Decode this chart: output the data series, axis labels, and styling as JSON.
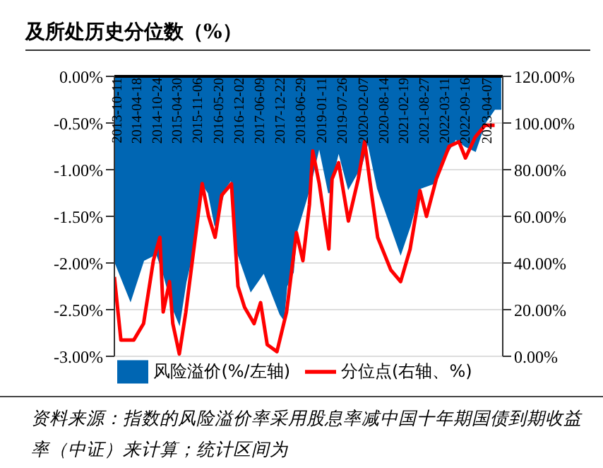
{
  "chart_data": {
    "type": "area",
    "title": "及所处历史分位数（%）",
    "annotations": [
      "资料来源：指数的风险溢价率采用股息率减中国十年期国债到期收益率（中证）来计算；统计区间为"
    ],
    "xlim": [
      "2013-10-01",
      "2023-09-15"
    ],
    "xticks": [
      "2013-10-11",
      "2014-04-18",
      "2014-10-24",
      "2015-04-30",
      "2015-11-06",
      "2016-05-20",
      "2016-12-02",
      "2017-06-09",
      "2017-12-22",
      "2018-06-29",
      "2019-01-11",
      "2019-07-26",
      "2020-02-07",
      "2020-08-14",
      "2021-02-19",
      "2021-08-27",
      "2022-03-11",
      "2022-09-16",
      "2023-04-07"
    ],
    "ylim": [
      -3,
      0
    ],
    "yticks": [
      {
        "value": 0,
        "label": "0.00%"
      },
      {
        "value": -0.5,
        "label": "-0.50%"
      },
      {
        "value": -1,
        "label": "-1.00%"
      },
      {
        "value": -1.5,
        "label": "-1.50%"
      },
      {
        "value": -2,
        "label": "-2.00%"
      },
      {
        "value": -2.5,
        "label": "-2.50%"
      },
      {
        "value": -3,
        "label": "-3.00%"
      }
    ],
    "y2lim": [
      0,
      120
    ],
    "y2ticks": [
      {
        "value": 0,
        "label": "0.00%"
      },
      {
        "value": 20,
        "label": "20.00%"
      },
      {
        "value": 40,
        "label": "40.00%"
      },
      {
        "value": 60,
        "label": "60.00%"
      },
      {
        "value": 80,
        "label": "80.00%"
      },
      {
        "value": 100,
        "label": "100.00%"
      },
      {
        "value": 120,
        "label": "120.00%"
      }
    ],
    "grid": "y",
    "legend": "bottom",
    "series": [
      {
        "name": "风险溢价(%/左轴)",
        "color": "#0066b3",
        "x": [
          "2013-10",
          "2014-03",
          "2014-07",
          "2014-11",
          "2015-01",
          "2015-04",
          "2015-06",
          "2015-08",
          "2015-10",
          "2016-01",
          "2016-03",
          "2016-05",
          "2016-08",
          "2016-10",
          "2016-12",
          "2017-04",
          "2017-08",
          "2018-01",
          "2018-02",
          "2018-03",
          "2018-05",
          "2018-06",
          "2018-10",
          "2019-01",
          "2019-04",
          "2019-07",
          "2019-10",
          "2020-02",
          "2020-04",
          "2020-07",
          "2020-11",
          "2021-02",
          "2021-05",
          "2021-08",
          "2021-12",
          "2022-03",
          "2022-07",
          "2022-10",
          "2023-01",
          "2023-04",
          "2023-07",
          "2023-09"
        ],
        "values": [
          -1.97,
          -2.4,
          -1.97,
          -1.9,
          -2.1,
          -2.48,
          -2.65,
          -2.2,
          -1.9,
          -1.15,
          -1.25,
          -1.6,
          -1.2,
          -1.1,
          -1.9,
          -2.3,
          -2.1,
          -2.55,
          -2.6,
          -2.25,
          -2.1,
          -1.67,
          -1.2,
          -0.75,
          -1.25,
          -0.8,
          -1.2,
          -0.95,
          -0.7,
          -1.2,
          -1.6,
          -1.9,
          -1.6,
          -1.2,
          -1.15,
          -0.9,
          -0.67,
          -0.75,
          -0.8,
          -0.5,
          -0.35,
          -0.35
        ]
      },
      {
        "name": "分位点(右轴、%)",
        "type": "line",
        "axis": "y2",
        "color": "#ff0000",
        "x": [
          "2013-10",
          "2013-12",
          "2014-04",
          "2014-07",
          "2014-10",
          "2014-12",
          "2015-01",
          "2015-03",
          "2015-04",
          "2015-06",
          "2015-08",
          "2015-10",
          "2016-01",
          "2016-03",
          "2016-05",
          "2016-07",
          "2016-10",
          "2016-12",
          "2017-02",
          "2017-05",
          "2017-07",
          "2017-09",
          "2017-12",
          "2018-03",
          "2018-06",
          "2018-08",
          "2018-10",
          "2018-11",
          "2019-01",
          "2019-04",
          "2019-05",
          "2019-07",
          "2019-10",
          "2020-01",
          "2020-03",
          "2020-05",
          "2020-07",
          "2020-11",
          "2021-02",
          "2021-05",
          "2021-08",
          "2021-10",
          "2022-01",
          "2022-05",
          "2022-08",
          "2022-10",
          "2023-01",
          "2023-04",
          "2023-07"
        ],
        "values": [
          34,
          7,
          7,
          14,
          41,
          51,
          19,
          32,
          14,
          1,
          19,
          41,
          74,
          60,
          51,
          69,
          74,
          30,
          21,
          14,
          23,
          5,
          2,
          19,
          53,
          41,
          65,
          88,
          74,
          46,
          76,
          83,
          58,
          76,
          92,
          71,
          51,
          37,
          32,
          46,
          71,
          60,
          76,
          90,
          92,
          85,
          94,
          99,
          99
        ]
      }
    ]
  }
}
